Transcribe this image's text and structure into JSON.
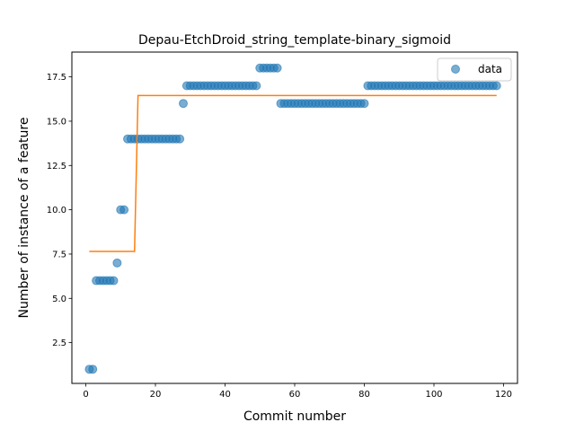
{
  "chart_data": {
    "type": "scatter",
    "title": "Depau-EtchDroid_string_template-binary_sigmoid",
    "xlabel": "Commit number",
    "ylabel": "Number of instance of a feature",
    "xlim": [
      -4,
      124
    ],
    "ylim": [
      0.2,
      18.9
    ],
    "xticks": [
      0,
      20,
      40,
      60,
      80,
      100,
      120
    ],
    "yticks": [
      2.5,
      5.0,
      7.5,
      10.0,
      12.5,
      15.0,
      17.5
    ],
    "ytick_labels": [
      "2.5",
      "5.0",
      "7.5",
      "10.0",
      "12.5",
      "15.0",
      "17.5"
    ],
    "grid": false,
    "legend": {
      "position": "top-right",
      "entries": [
        "data"
      ]
    },
    "colors": {
      "data": "#1f77b4",
      "fit": "#ff7f0e"
    },
    "series": [
      {
        "name": "data",
        "kind": "scatter",
        "points": [
          [
            1,
            1
          ],
          [
            2,
            1
          ],
          [
            3,
            6
          ],
          [
            4,
            6
          ],
          [
            5,
            6
          ],
          [
            6,
            6
          ],
          [
            7,
            6
          ],
          [
            8,
            6
          ],
          [
            9,
            7
          ],
          [
            10,
            10
          ],
          [
            11,
            10
          ],
          [
            12,
            14
          ],
          [
            13,
            14
          ],
          [
            14,
            14
          ],
          [
            15,
            14
          ],
          [
            16,
            14
          ],
          [
            17,
            14
          ],
          [
            18,
            14
          ],
          [
            19,
            14
          ],
          [
            20,
            14
          ],
          [
            21,
            14
          ],
          [
            22,
            14
          ],
          [
            23,
            14
          ],
          [
            24,
            14
          ],
          [
            25,
            14
          ],
          [
            26,
            14
          ],
          [
            27,
            14
          ],
          [
            28,
            16
          ],
          [
            29,
            17
          ],
          [
            30,
            17
          ],
          [
            31,
            17
          ],
          [
            32,
            17
          ],
          [
            33,
            17
          ],
          [
            34,
            17
          ],
          [
            35,
            17
          ],
          [
            36,
            17
          ],
          [
            37,
            17
          ],
          [
            38,
            17
          ],
          [
            39,
            17
          ],
          [
            40,
            17
          ],
          [
            41,
            17
          ],
          [
            42,
            17
          ],
          [
            43,
            17
          ],
          [
            44,
            17
          ],
          [
            45,
            17
          ],
          [
            46,
            17
          ],
          [
            47,
            17
          ],
          [
            48,
            17
          ],
          [
            49,
            17
          ],
          [
            50,
            18
          ],
          [
            51,
            18
          ],
          [
            52,
            18
          ],
          [
            53,
            18
          ],
          [
            54,
            18
          ],
          [
            55,
            18
          ],
          [
            56,
            16
          ],
          [
            57,
            16
          ],
          [
            58,
            16
          ],
          [
            59,
            16
          ],
          [
            60,
            16
          ],
          [
            61,
            16
          ],
          [
            62,
            16
          ],
          [
            63,
            16
          ],
          [
            64,
            16
          ],
          [
            65,
            16
          ],
          [
            66,
            16
          ],
          [
            67,
            16
          ],
          [
            68,
            16
          ],
          [
            69,
            16
          ],
          [
            70,
            16
          ],
          [
            71,
            16
          ],
          [
            72,
            16
          ],
          [
            73,
            16
          ],
          [
            74,
            16
          ],
          [
            75,
            16
          ],
          [
            76,
            16
          ],
          [
            77,
            16
          ],
          [
            78,
            16
          ],
          [
            79,
            16
          ],
          [
            80,
            16
          ],
          [
            81,
            17
          ],
          [
            82,
            17
          ],
          [
            83,
            17
          ],
          [
            84,
            17
          ],
          [
            85,
            17
          ],
          [
            86,
            17
          ],
          [
            87,
            17
          ],
          [
            88,
            17
          ],
          [
            89,
            17
          ],
          [
            90,
            17
          ],
          [
            91,
            17
          ],
          [
            92,
            17
          ],
          [
            93,
            17
          ],
          [
            94,
            17
          ],
          [
            95,
            17
          ],
          [
            96,
            17
          ],
          [
            97,
            17
          ],
          [
            98,
            17
          ],
          [
            99,
            17
          ],
          [
            100,
            17
          ],
          [
            101,
            17
          ],
          [
            102,
            17
          ],
          [
            103,
            17
          ],
          [
            104,
            17
          ],
          [
            105,
            17
          ],
          [
            106,
            17
          ],
          [
            107,
            17
          ],
          [
            108,
            17
          ],
          [
            109,
            17
          ],
          [
            110,
            17
          ],
          [
            111,
            17
          ],
          [
            112,
            17
          ],
          [
            113,
            17
          ],
          [
            114,
            17
          ],
          [
            115,
            17
          ],
          [
            116,
            17
          ],
          [
            117,
            17
          ],
          [
            118,
            17
          ]
        ]
      },
      {
        "kind": "line",
        "points": [
          [
            1,
            7.65
          ],
          [
            14,
            7.65
          ],
          [
            15,
            16.45
          ],
          [
            118,
            16.45
          ]
        ]
      }
    ]
  }
}
